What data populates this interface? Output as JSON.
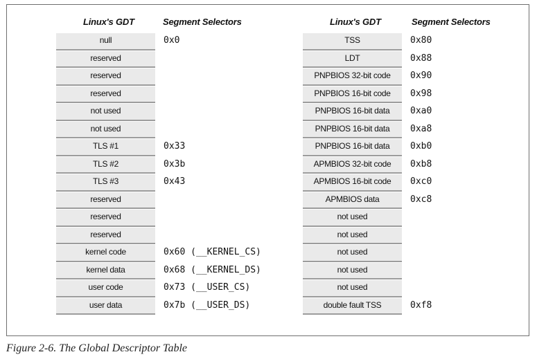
{
  "headers": {
    "left_gdt": "Linux's GDT",
    "left_selectors": "Segment Selectors",
    "right_gdt": "Linux's GDT",
    "right_selectors": "Segment Selectors"
  },
  "left_entries": [
    {
      "label": "null",
      "selector": "0x0"
    },
    {
      "label": "reserved",
      "selector": ""
    },
    {
      "label": "reserved",
      "selector": ""
    },
    {
      "label": "reserved",
      "selector": ""
    },
    {
      "label": "not used",
      "selector": ""
    },
    {
      "label": "not used",
      "selector": ""
    },
    {
      "label": "TLS #1",
      "selector": "0x33"
    },
    {
      "label": "TLS #2",
      "selector": "0x3b"
    },
    {
      "label": "TLS #3",
      "selector": "0x43"
    },
    {
      "label": "reserved",
      "selector": ""
    },
    {
      "label": "reserved",
      "selector": ""
    },
    {
      "label": "reserved",
      "selector": ""
    },
    {
      "label": "kernel code",
      "selector": "0x60 (__KERNEL_CS)"
    },
    {
      "label": "kernel data",
      "selector": "0x68 (__KERNEL_DS)"
    },
    {
      "label": "user code",
      "selector": "0x73 (__USER_CS)"
    },
    {
      "label": "user data",
      "selector": "0x7b (__USER_DS)"
    }
  ],
  "right_entries": [
    {
      "label": "TSS",
      "selector": "0x80"
    },
    {
      "label": "LDT",
      "selector": "0x88"
    },
    {
      "label": "PNPBIOS 32-bit code",
      "selector": "0x90"
    },
    {
      "label": "PNPBIOS 16-bit code",
      "selector": "0x98"
    },
    {
      "label": "PNPBIOS 16-bit data",
      "selector": "0xa0"
    },
    {
      "label": "PNPBIOS 16-bit data",
      "selector": "0xa8"
    },
    {
      "label": "PNPBIOS 16-bit data",
      "selector": "0xb0"
    },
    {
      "label": "APMBIOS 32-bit code",
      "selector": "0xb8"
    },
    {
      "label": "APMBIOS 16-bit code",
      "selector": "0xc0"
    },
    {
      "label": "APMBIOS data",
      "selector": "0xc8"
    },
    {
      "label": "not used",
      "selector": ""
    },
    {
      "label": "not used",
      "selector": ""
    },
    {
      "label": "not used",
      "selector": ""
    },
    {
      "label": "not used",
      "selector": ""
    },
    {
      "label": "not used",
      "selector": ""
    },
    {
      "label": "double fault TSS",
      "selector": "0xf8"
    }
  ],
  "caption": "Figure 2-6. The Global Descriptor Table",
  "colors": {
    "entry_fill": "#eaeaea",
    "entry_shadow": "#9c9c9c",
    "border": "#6e6e6e"
  }
}
